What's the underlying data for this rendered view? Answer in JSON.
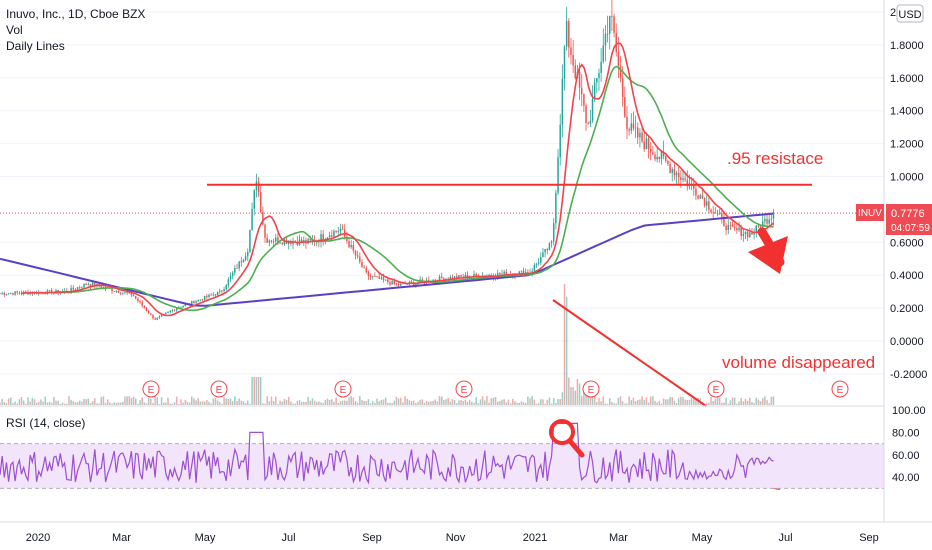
{
  "header": {
    "title": "Inuvo, Inc., 1D, Cboe BZX",
    "vol_label": "Vol",
    "daily_lines_label": "Daily Lines",
    "currency": "USD"
  },
  "price_axis": {
    "ticks": [
      "2.",
      "1.8000",
      "1.6000",
      "1.4000",
      "1.2000",
      "1.0000",
      "0.6000",
      "0.4000",
      "0.2000",
      "0.0000",
      "-0.2000"
    ],
    "tick_values": [
      2.0,
      1.8,
      1.6,
      1.4,
      1.2,
      1.0,
      0.6,
      0.4,
      0.2,
      0.0,
      -0.2
    ]
  },
  "ticker_badge": {
    "symbol": "INUV",
    "price": "0.7776",
    "countdown": "04:07:59",
    "value": 0.7776
  },
  "rsi": {
    "label": "RSI (14, close)",
    "ticks": [
      "100.00",
      "80.00",
      "60.00",
      "40.00"
    ],
    "tick_values": [
      100,
      80,
      60,
      40
    ],
    "band": [
      30,
      70
    ]
  },
  "time_axis": {
    "labels": [
      "2020",
      "Mar",
      "May",
      "Jul",
      "Sep",
      "Nov",
      "2021",
      "Mar",
      "May",
      "Jul",
      "Sep"
    ]
  },
  "earnings_marker": "E",
  "annotations": {
    "resistance": {
      "text": ".95 resistace",
      "level": 0.95
    },
    "volume": {
      "text": "volume disappeared"
    }
  },
  "colors": {
    "up": "#26a69a",
    "down": "#ef5350",
    "ma_red": "#f0444c",
    "ma_green": "#4caf50",
    "ma_blue": "#5b3fc4",
    "rsi_line": "#9c4fd0",
    "rsi_band": "#f1e4fb",
    "annotation": "#f23030",
    "badge": "#ef4b55"
  },
  "chart_data": {
    "type": "candlestick",
    "series_points": [
      {
        "t": 0,
        "c": 0.29
      },
      {
        "t": 1.5,
        "c": 0.3
      },
      {
        "t": 2,
        "c": 0.35
      },
      {
        "t": 3,
        "c": 0.28
      },
      {
        "t": 3.5,
        "c": 0.13
      },
      {
        "t": 4,
        "c": 0.2
      },
      {
        "t": 4.5,
        "c": 0.25
      },
      {
        "t": 5,
        "c": 0.3
      },
      {
        "t": 5.6,
        "c": 0.55
      },
      {
        "t": 5.8,
        "c": 1.0
      },
      {
        "t": 6,
        "c": 0.62
      },
      {
        "t": 7,
        "c": 0.6
      },
      {
        "t": 7.7,
        "c": 0.68
      },
      {
        "t": 8.3,
        "c": 0.4
      },
      {
        "t": 9,
        "c": 0.34
      },
      {
        "t": 10,
        "c": 0.38
      },
      {
        "t": 11,
        "c": 0.4
      },
      {
        "t": 12,
        "c": 0.42
      },
      {
        "t": 12.5,
        "c": 0.6
      },
      {
        "t": 12.8,
        "c": 1.9
      },
      {
        "t": 13.3,
        "c": 1.3
      },
      {
        "t": 13.8,
        "c": 2.0
      },
      {
        "t": 14.2,
        "c": 1.3
      },
      {
        "t": 15,
        "c": 1.1
      },
      {
        "t": 15.8,
        "c": 0.9
      },
      {
        "t": 16.5,
        "c": 0.68
      },
      {
        "t": 17,
        "c": 0.65
      },
      {
        "t": 17.5,
        "c": 0.78
      }
    ],
    "volume_spike_t": 12.8,
    "earnings_t": [
      2.5,
      3.5,
      5.9,
      8.0,
      10.8,
      13.7,
      16.5,
      19.5
    ]
  }
}
